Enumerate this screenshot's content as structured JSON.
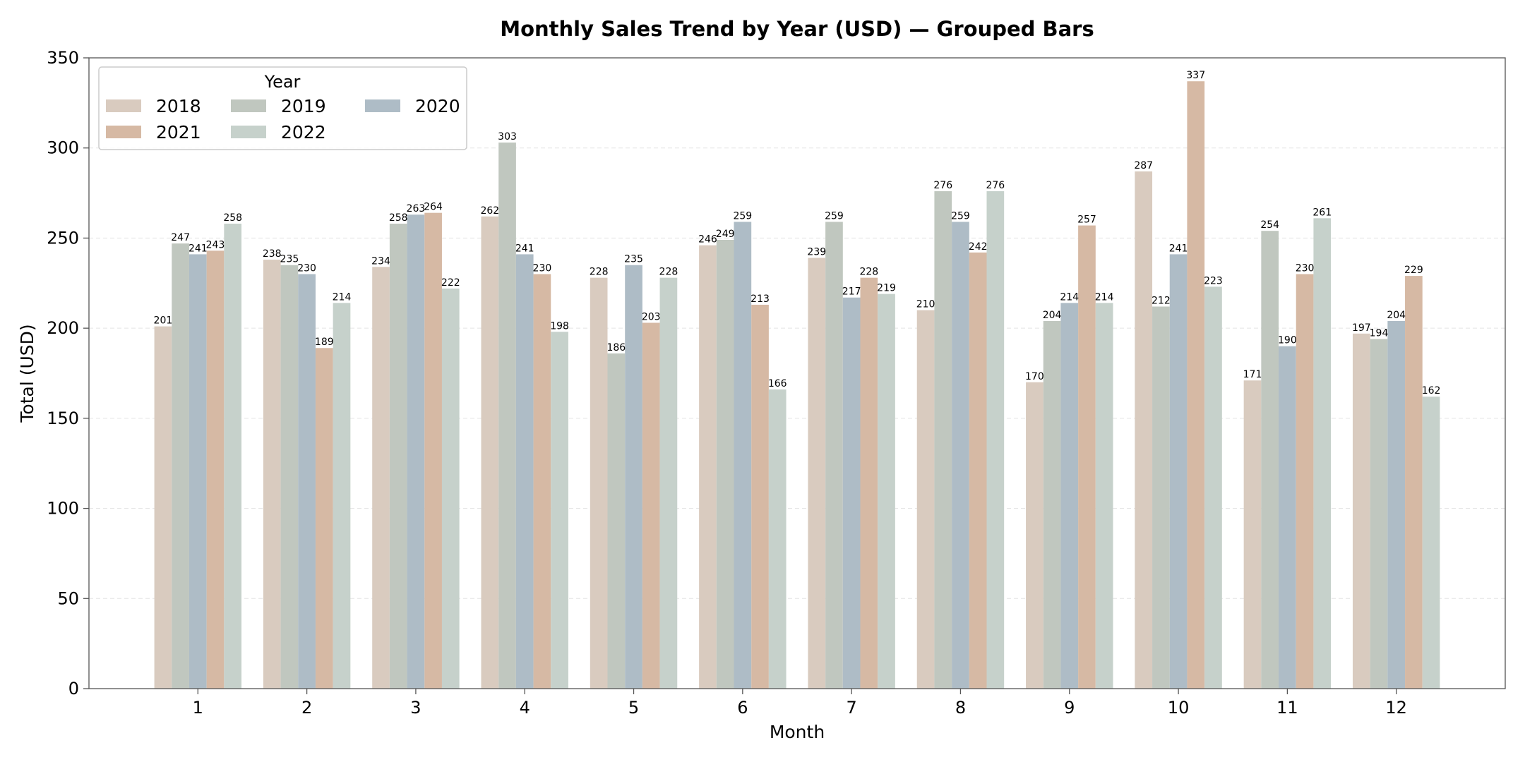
{
  "chart_data": {
    "type": "bar",
    "title": "Monthly Sales Trend by Year (USD) — Grouped Bars",
    "xlabel": "Month",
    "ylabel": "Total (USD)",
    "ylim": [
      0,
      350
    ],
    "yticks": [
      0,
      50,
      100,
      150,
      200,
      250,
      300,
      350
    ],
    "grid": true,
    "legend": {
      "title": "Year",
      "placement": "top-left",
      "columns": 3
    },
    "categories": [
      "1",
      "2",
      "3",
      "4",
      "5",
      "6",
      "7",
      "8",
      "9",
      "10",
      "11",
      "12"
    ],
    "series": [
      {
        "name": "2018",
        "color": "#d9cbbf",
        "values": [
          201,
          238,
          234,
          262,
          228,
          246,
          239,
          210,
          170,
          287,
          171,
          197
        ]
      },
      {
        "name": "2019",
        "color": "#c0c7bf",
        "values": [
          247,
          235,
          258,
          303,
          186,
          249,
          259,
          276,
          204,
          212,
          254,
          194
        ]
      },
      {
        "name": "2020",
        "color": "#aebcc6",
        "values": [
          241,
          230,
          263,
          241,
          235,
          259,
          217,
          259,
          214,
          241,
          190,
          204
        ]
      },
      {
        "name": "2021",
        "color": "#d6b9a4",
        "values": [
          243,
          189,
          264,
          230,
          203,
          213,
          228,
          242,
          257,
          337,
          230,
          229
        ]
      },
      {
        "name": "2022",
        "color": "#c6d1cb",
        "values": [
          258,
          214,
          222,
          198,
          228,
          166,
          219,
          276,
          214,
          223,
          261,
          162
        ]
      }
    ]
  }
}
